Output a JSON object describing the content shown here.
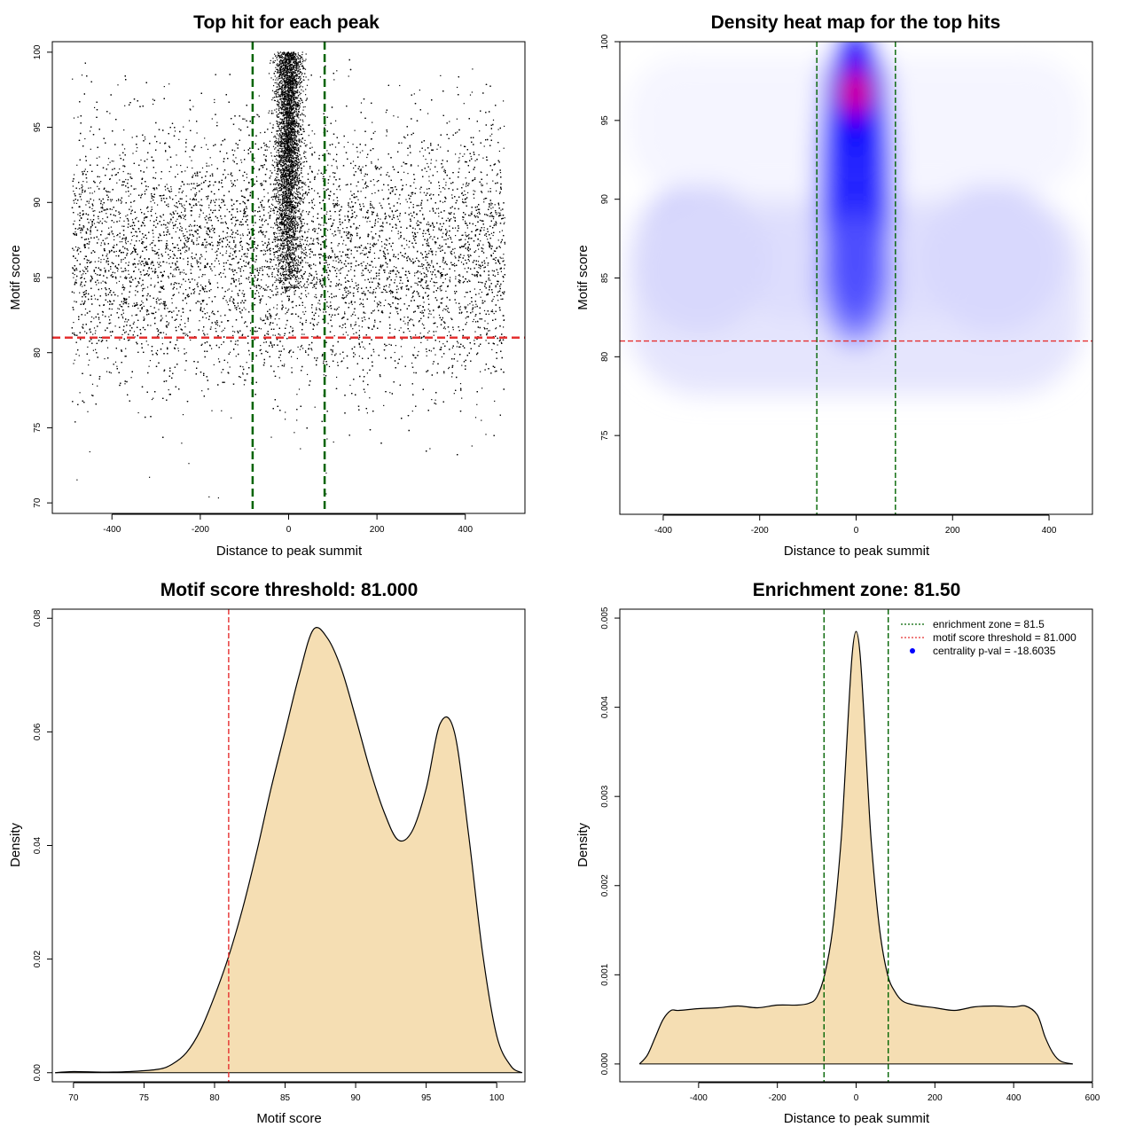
{
  "chart_data": [
    {
      "id": "scatter",
      "type": "scatter",
      "title": "Top hit for each peak",
      "xlabel": "Distance to peak summit",
      "ylabel": "Motif score",
      "xlim": [
        -535,
        535
      ],
      "ylim": [
        69.3,
        100.7
      ],
      "xticks": [
        -400,
        -200,
        0,
        200,
        400
      ],
      "yticks": [
        70,
        75,
        80,
        85,
        90,
        95,
        100
      ],
      "point_count": 20000,
      "background_distribution": {
        "x_range": [
          -490,
          490
        ],
        "score_mean": 86.5,
        "score_sd": 4.3
      },
      "central_cluster": {
        "x_center": 0,
        "x_sd": 15,
        "score_range": [
          84,
          100
        ]
      },
      "outliers": [
        [
          -450,
          73.4
        ],
        [
          -340,
          76
        ],
        [
          -315,
          71.7
        ],
        [
          -180,
          70.4
        ],
        [
          85,
          70.6
        ]
      ],
      "vlines": [
        -81.5,
        81.5
      ],
      "vline_color": "#006400",
      "hline": 81.0,
      "hline_color": "#e53030"
    },
    {
      "id": "heatmap",
      "type": "heatmap",
      "title": "Density heat map for the top hits",
      "xlabel": "Distance to peak summit",
      "ylabel": "Motif score",
      "xlim": [
        -490,
        490
      ],
      "ylim": [
        70,
        100
      ],
      "xticks": [
        -400,
        -200,
        0,
        200,
        400
      ],
      "yticks": [
        75,
        80,
        85,
        90,
        95,
        100
      ],
      "colors": [
        "#ffffff",
        "#0000ff",
        "#ff0000"
      ],
      "peak": {
        "x": 0,
        "y": 96.8
      },
      "vlines": [
        -81.5,
        81.5
      ],
      "vline_color": "#006400",
      "hline": 81.0,
      "hline_color": "#e53030"
    },
    {
      "id": "score-density",
      "type": "area",
      "title": "Motif score threshold: 81.000",
      "xlabel": "Motif score",
      "ylabel": "Density",
      "xlim": [
        68.5,
        102
      ],
      "ylim": [
        -0.0016,
        0.0816
      ],
      "xticks": [
        70,
        75,
        80,
        85,
        90,
        95,
        100
      ],
      "yticks": [
        0.0,
        0.02,
        0.04,
        0.06,
        0.08
      ],
      "ytick_labels": [
        "0.00",
        "0.02",
        "0.04",
        "0.06",
        "0.08"
      ],
      "x": [
        68.7,
        70,
        72,
        74,
        76,
        77,
        78,
        79,
        80,
        81,
        82,
        83,
        84,
        85,
        86,
        87,
        88,
        89,
        90,
        91,
        92,
        93,
        94,
        95,
        96,
        97,
        98,
        99,
        100,
        101,
        101.8
      ],
      "y": [
        0.0,
        0.0002,
        0.0001,
        0.0002,
        0.0006,
        0.0015,
        0.0035,
        0.0075,
        0.0135,
        0.0205,
        0.029,
        0.039,
        0.05,
        0.06,
        0.07,
        0.078,
        0.0765,
        0.071,
        0.0625,
        0.0535,
        0.046,
        0.041,
        0.0425,
        0.05,
        0.0615,
        0.06,
        0.042,
        0.021,
        0.0065,
        0.0012,
        0.0
      ],
      "fill": "#f5deb3",
      "vline": 81.0,
      "vline_color": "#e53030"
    },
    {
      "id": "distance-density",
      "type": "area",
      "title": "Enrichment zone: 81.50",
      "xlabel": "Distance to peak summit",
      "ylabel": "Density",
      "xlim": [
        -600,
        600
      ],
      "ylim": [
        -0.0002,
        0.0051
      ],
      "xticks": [
        -400,
        -200,
        0,
        200,
        400,
        600
      ],
      "yticks": [
        0.0,
        0.001,
        0.002,
        0.003,
        0.004,
        0.005
      ],
      "ytick_labels": [
        "0.000",
        "0.001",
        "0.002",
        "0.003",
        "0.004",
        "0.005"
      ],
      "x": [
        -550,
        -530,
        -510,
        -490,
        -470,
        -450,
        -400,
        -350,
        -300,
        -250,
        -200,
        -150,
        -120,
        -100,
        -80,
        -60,
        -40,
        -30,
        -20,
        -10,
        0,
        10,
        20,
        30,
        40,
        60,
        80,
        100,
        120,
        150,
        200,
        250,
        300,
        350,
        400,
        430,
        460,
        480,
        500,
        520,
        550
      ],
      "y": [
        0.0,
        0.0001,
        0.0003,
        0.0005,
        0.0006,
        0.0006,
        0.00062,
        0.00063,
        0.00065,
        0.00063,
        0.00066,
        0.00066,
        0.00068,
        0.00075,
        0.001,
        0.0015,
        0.0024,
        0.0031,
        0.0039,
        0.0046,
        0.00485,
        0.0046,
        0.0039,
        0.0031,
        0.0024,
        0.0015,
        0.001,
        0.0008,
        0.0007,
        0.00066,
        0.00063,
        0.0006,
        0.00064,
        0.00065,
        0.00064,
        0.00065,
        0.00055,
        0.0003,
        0.00012,
        3e-05,
        0.0
      ],
      "fill": "#f5deb3",
      "vlines": [
        -81.5,
        81.5
      ],
      "vline_color": "#006400",
      "legend": {
        "position": "top-right",
        "items": [
          {
            "label": "enrichment zone = 81.5",
            "style": "dotted-line",
            "color": "#006400"
          },
          {
            "label": "motif score threshold = 81.000",
            "style": "dotted-line",
            "color": "#e53030"
          },
          {
            "label": "centrality p-val = -18.6035",
            "style": "point",
            "color": "#0000ff"
          }
        ]
      }
    }
  ]
}
